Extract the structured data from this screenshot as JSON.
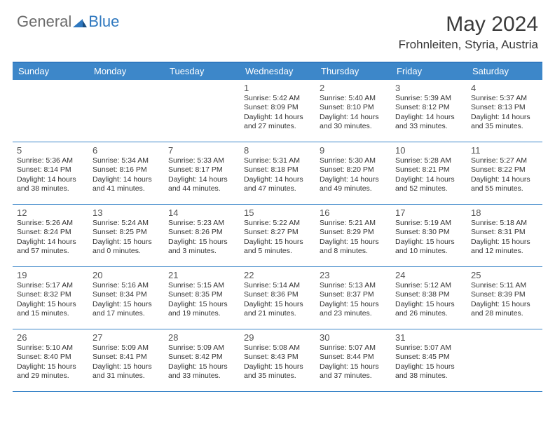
{
  "logo": {
    "general": "General",
    "blue": "Blue"
  },
  "title": "May 2024",
  "location": "Frohnleiten, Styria, Austria",
  "header_color": "#3d87c9",
  "days_of_week": [
    "Sunday",
    "Monday",
    "Tuesday",
    "Wednesday",
    "Thursday",
    "Friday",
    "Saturday"
  ],
  "weeks": [
    [
      null,
      null,
      null,
      {
        "n": "1",
        "r": "5:42 AM",
        "s": "8:09 PM",
        "d": "14 hours and 27 minutes."
      },
      {
        "n": "2",
        "r": "5:40 AM",
        "s": "8:10 PM",
        "d": "14 hours and 30 minutes."
      },
      {
        "n": "3",
        "r": "5:39 AM",
        "s": "8:12 PM",
        "d": "14 hours and 33 minutes."
      },
      {
        "n": "4",
        "r": "5:37 AM",
        "s": "8:13 PM",
        "d": "14 hours and 35 minutes."
      }
    ],
    [
      {
        "n": "5",
        "r": "5:36 AM",
        "s": "8:14 PM",
        "d": "14 hours and 38 minutes."
      },
      {
        "n": "6",
        "r": "5:34 AM",
        "s": "8:16 PM",
        "d": "14 hours and 41 minutes."
      },
      {
        "n": "7",
        "r": "5:33 AM",
        "s": "8:17 PM",
        "d": "14 hours and 44 minutes."
      },
      {
        "n": "8",
        "r": "5:31 AM",
        "s": "8:18 PM",
        "d": "14 hours and 47 minutes."
      },
      {
        "n": "9",
        "r": "5:30 AM",
        "s": "8:20 PM",
        "d": "14 hours and 49 minutes."
      },
      {
        "n": "10",
        "r": "5:28 AM",
        "s": "8:21 PM",
        "d": "14 hours and 52 minutes."
      },
      {
        "n": "11",
        "r": "5:27 AM",
        "s": "8:22 PM",
        "d": "14 hours and 55 minutes."
      }
    ],
    [
      {
        "n": "12",
        "r": "5:26 AM",
        "s": "8:24 PM",
        "d": "14 hours and 57 minutes."
      },
      {
        "n": "13",
        "r": "5:24 AM",
        "s": "8:25 PM",
        "d": "15 hours and 0 minutes."
      },
      {
        "n": "14",
        "r": "5:23 AM",
        "s": "8:26 PM",
        "d": "15 hours and 3 minutes."
      },
      {
        "n": "15",
        "r": "5:22 AM",
        "s": "8:27 PM",
        "d": "15 hours and 5 minutes."
      },
      {
        "n": "16",
        "r": "5:21 AM",
        "s": "8:29 PM",
        "d": "15 hours and 8 minutes."
      },
      {
        "n": "17",
        "r": "5:19 AM",
        "s": "8:30 PM",
        "d": "15 hours and 10 minutes."
      },
      {
        "n": "18",
        "r": "5:18 AM",
        "s": "8:31 PM",
        "d": "15 hours and 12 minutes."
      }
    ],
    [
      {
        "n": "19",
        "r": "5:17 AM",
        "s": "8:32 PM",
        "d": "15 hours and 15 minutes."
      },
      {
        "n": "20",
        "r": "5:16 AM",
        "s": "8:34 PM",
        "d": "15 hours and 17 minutes."
      },
      {
        "n": "21",
        "r": "5:15 AM",
        "s": "8:35 PM",
        "d": "15 hours and 19 minutes."
      },
      {
        "n": "22",
        "r": "5:14 AM",
        "s": "8:36 PM",
        "d": "15 hours and 21 minutes."
      },
      {
        "n": "23",
        "r": "5:13 AM",
        "s": "8:37 PM",
        "d": "15 hours and 23 minutes."
      },
      {
        "n": "24",
        "r": "5:12 AM",
        "s": "8:38 PM",
        "d": "15 hours and 26 minutes."
      },
      {
        "n": "25",
        "r": "5:11 AM",
        "s": "8:39 PM",
        "d": "15 hours and 28 minutes."
      }
    ],
    [
      {
        "n": "26",
        "r": "5:10 AM",
        "s": "8:40 PM",
        "d": "15 hours and 29 minutes."
      },
      {
        "n": "27",
        "r": "5:09 AM",
        "s": "8:41 PM",
        "d": "15 hours and 31 minutes."
      },
      {
        "n": "28",
        "r": "5:09 AM",
        "s": "8:42 PM",
        "d": "15 hours and 33 minutes."
      },
      {
        "n": "29",
        "r": "5:08 AM",
        "s": "8:43 PM",
        "d": "15 hours and 35 minutes."
      },
      {
        "n": "30",
        "r": "5:07 AM",
        "s": "8:44 PM",
        "d": "15 hours and 37 minutes."
      },
      {
        "n": "31",
        "r": "5:07 AM",
        "s": "8:45 PM",
        "d": "15 hours and 38 minutes."
      },
      null
    ]
  ],
  "labels": {
    "sunrise": "Sunrise: ",
    "sunset": "Sunset: ",
    "daylight": "Daylight: "
  }
}
